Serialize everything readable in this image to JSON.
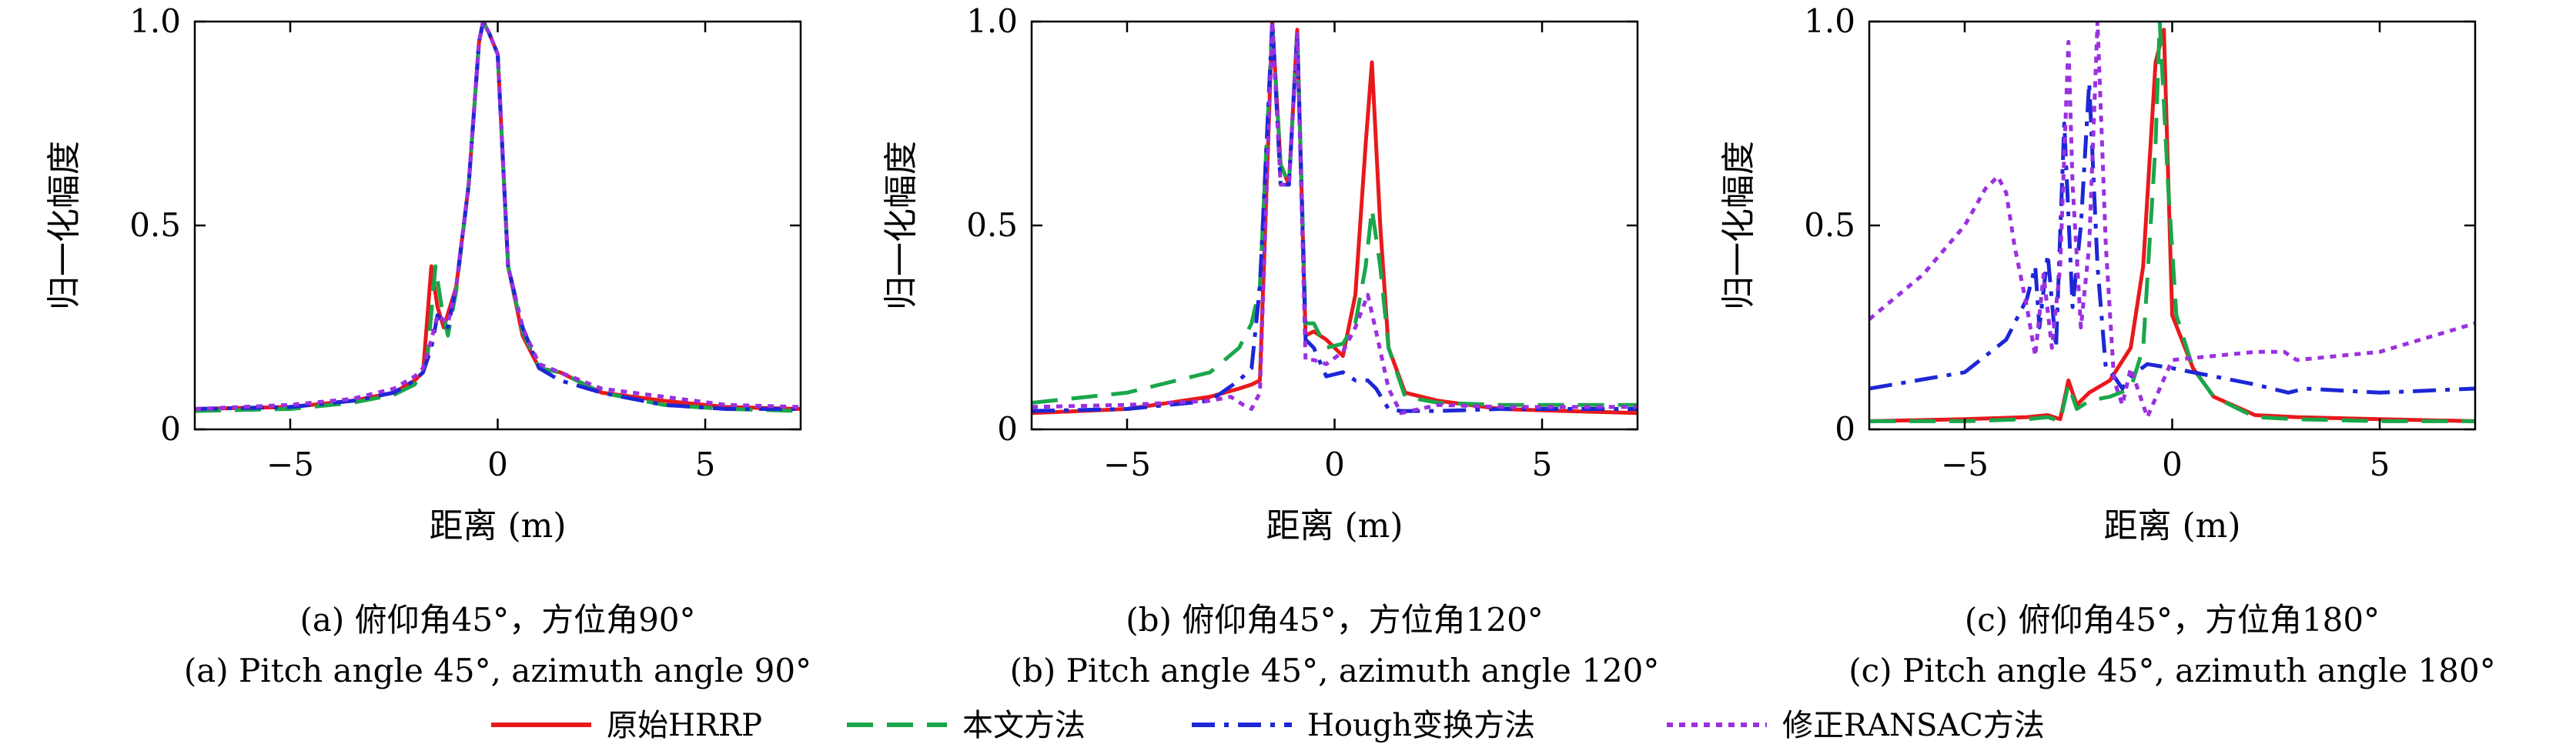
{
  "chart_data": [
    {
      "type": "line",
      "xlabel": "距离 (m)",
      "ylabel": "归一化幅度",
      "caption_cn": "(a) 俯仰角45°，方位角90°",
      "caption_en": "(a) Pitch angle 45°, azimuth angle 90°",
      "xlim": [
        -7.3,
        7.3
      ],
      "ylim": [
        0,
        1
      ],
      "xticks": [
        -5,
        0,
        5
      ],
      "xtick_labels": [
        "−5",
        "0",
        "5"
      ],
      "yticks": [
        0,
        0.5,
        1
      ],
      "ytick_labels": [
        "0",
        "0.5",
        "1.0"
      ],
      "series": [
        {
          "name": "原始HRRP",
          "x": [
            -7.3,
            -5,
            -3.5,
            -2.5,
            -2,
            -1.8,
            -1.6,
            -1.45,
            -1.3,
            -1,
            -0.7,
            -0.45,
            -0.35,
            -0.2,
            0,
            0.25,
            0.6,
            1,
            1.5,
            2.5,
            4,
            5.5,
            7.3
          ],
          "y": [
            0.05,
            0.055,
            0.07,
            0.09,
            0.12,
            0.14,
            0.4,
            0.3,
            0.25,
            0.35,
            0.6,
            0.95,
            1.0,
            0.97,
            0.92,
            0.4,
            0.23,
            0.15,
            0.14,
            0.09,
            0.07,
            0.055,
            0.05
          ]
        },
        {
          "name": "本文方法",
          "x": [
            -7.3,
            -5,
            -3.5,
            -2.5,
            -2,
            -1.7,
            -1.5,
            -1.35,
            -1.2,
            -1,
            -0.7,
            -0.45,
            -0.35,
            -0.2,
            0,
            0.25,
            0.6,
            1,
            1.5,
            2.5,
            4,
            5.5,
            7.3
          ],
          "y": [
            0.045,
            0.05,
            0.065,
            0.085,
            0.11,
            0.17,
            0.4,
            0.3,
            0.23,
            0.34,
            0.6,
            0.95,
            1.0,
            0.97,
            0.92,
            0.4,
            0.24,
            0.15,
            0.14,
            0.09,
            0.06,
            0.05,
            0.045
          ]
        },
        {
          "name": "Hough变换方法",
          "x": [
            -7.3,
            -5,
            -3.5,
            -2.5,
            -2,
            -1.8,
            -1.6,
            -1.45,
            -1.2,
            -1,
            -0.7,
            -0.45,
            -0.35,
            -0.2,
            0,
            0.25,
            0.6,
            1,
            1.5,
            2.5,
            4,
            5.5,
            7.3
          ],
          "y": [
            0.05,
            0.055,
            0.07,
            0.09,
            0.12,
            0.14,
            0.2,
            0.28,
            0.25,
            0.35,
            0.6,
            0.95,
            1.0,
            0.97,
            0.92,
            0.4,
            0.25,
            0.15,
            0.12,
            0.09,
            0.06,
            0.05,
            0.05
          ]
        },
        {
          "name": "修正RANSAC方法",
          "x": [
            -7.3,
            -5,
            -3.5,
            -2.5,
            -2,
            -1.8,
            -1.6,
            -1.45,
            -1.2,
            -1,
            -0.7,
            -0.45,
            -0.35,
            -0.2,
            0,
            0.25,
            0.6,
            1,
            1.5,
            2.5,
            4,
            5.5,
            7.3
          ],
          "y": [
            0.05,
            0.06,
            0.075,
            0.1,
            0.13,
            0.15,
            0.22,
            0.28,
            0.26,
            0.35,
            0.6,
            0.95,
            1.0,
            0.97,
            0.92,
            0.4,
            0.25,
            0.16,
            0.14,
            0.1,
            0.08,
            0.06,
            0.055
          ]
        }
      ]
    },
    {
      "type": "line",
      "xlabel": "距离 (m)",
      "ylabel": "归一化幅度",
      "caption_cn": "(b) 俯仰角45°，方位角120°",
      "caption_en": "(b) Pitch angle 45°, azimuth angle 120°",
      "xlim": [
        -7.3,
        7.3
      ],
      "ylim": [
        0,
        1
      ],
      "xticks": [
        -5,
        0,
        5
      ],
      "xtick_labels": [
        "−5",
        "0",
        "5"
      ],
      "yticks": [
        0,
        0.5,
        1
      ],
      "ytick_labels": [
        "0",
        "0.5",
        "1.0"
      ],
      "series": [
        {
          "name": "原始HRRP",
          "x": [
            -7.3,
            -5,
            -3,
            -2.3,
            -2,
            -1.8,
            -1.5,
            -1.3,
            -1.1,
            -0.9,
            -0.7,
            -0.5,
            -0.2,
            0.2,
            0.5,
            0.75,
            0.9,
            1.1,
            1.3,
            1.7,
            2.5,
            4,
            5.5,
            7.3
          ],
          "y": [
            0.04,
            0.05,
            0.08,
            0.1,
            0.11,
            0.12,
            1.0,
            0.65,
            0.6,
            0.98,
            0.23,
            0.24,
            0.22,
            0.18,
            0.33,
            0.7,
            0.9,
            0.5,
            0.2,
            0.09,
            0.07,
            0.05,
            0.045,
            0.04
          ]
        },
        {
          "name": "本文方法",
          "x": [
            -7.3,
            -5,
            -3,
            -2.3,
            -2,
            -1.8,
            -1.5,
            -1.3,
            -1.1,
            -0.9,
            -0.7,
            -0.5,
            -0.2,
            0.2,
            0.5,
            0.75,
            0.9,
            1.1,
            1.3,
            1.7,
            2.5,
            4,
            5.5,
            7.3
          ],
          "y": [
            0.065,
            0.09,
            0.14,
            0.2,
            0.26,
            0.35,
            1.0,
            0.65,
            0.6,
            0.98,
            0.26,
            0.26,
            0.2,
            0.21,
            0.26,
            0.4,
            0.54,
            0.4,
            0.2,
            0.08,
            0.065,
            0.06,
            0.06,
            0.06
          ]
        },
        {
          "name": "Hough变换方法",
          "x": [
            -7.3,
            -5,
            -3,
            -2.3,
            -2,
            -1.8,
            -1.5,
            -1.3,
            -1.1,
            -0.9,
            -0.7,
            -0.5,
            -0.2,
            0.2,
            0.5,
            0.8,
            1.0,
            1.3,
            1.6,
            2.5,
            4,
            5.5,
            7.3
          ],
          "y": [
            0.045,
            0.05,
            0.07,
            0.12,
            0.15,
            0.35,
            1.0,
            0.6,
            0.6,
            0.97,
            0.22,
            0.2,
            0.13,
            0.14,
            0.12,
            0.12,
            0.1,
            0.05,
            0.045,
            0.045,
            0.05,
            0.05,
            0.05
          ]
        },
        {
          "name": "修正RANSAC方法",
          "x": [
            -7.3,
            -5,
            -3,
            -2.5,
            -2.2,
            -2,
            -1.8,
            -1.5,
            -1.3,
            -1.1,
            -0.9,
            -0.7,
            -0.5,
            -0.2,
            0.2,
            0.5,
            0.8,
            1.0,
            1.3,
            1.6,
            2.5,
            4,
            5.5,
            7.3
          ],
          "y": [
            0.055,
            0.06,
            0.07,
            0.08,
            0.06,
            0.05,
            0.09,
            1.0,
            0.6,
            0.6,
            0.97,
            0.17,
            0.17,
            0.16,
            0.19,
            0.25,
            0.33,
            0.24,
            0.1,
            0.04,
            0.06,
            0.055,
            0.055,
            0.055
          ]
        }
      ]
    },
    {
      "type": "line",
      "xlabel": "距离 (m)",
      "ylabel": "归一化幅度",
      "caption_cn": "(c) 俯仰角45°，方位角180°",
      "caption_en": "(c) Pitch angle 45°, azimuth angle 180°",
      "xlim": [
        -7.3,
        7.3
      ],
      "ylim": [
        0,
        1
      ],
      "xticks": [
        -5,
        0,
        5
      ],
      "xtick_labels": [
        "−5",
        "0",
        "5"
      ],
      "yticks": [
        0,
        0.5,
        1
      ],
      "ytick_labels": [
        "0",
        "0.5",
        "1.0"
      ],
      "series": [
        {
          "name": "原始HRRP",
          "x": [
            -7.3,
            -5,
            -3.5,
            -3,
            -2.7,
            -2.5,
            -2.3,
            -2,
            -1.5,
            -1,
            -0.7,
            -0.4,
            -0.2,
            0,
            0.5,
            1,
            2,
            3,
            5,
            7.3
          ],
          "y": [
            0.02,
            0.025,
            0.03,
            0.035,
            0.025,
            0.12,
            0.06,
            0.09,
            0.12,
            0.2,
            0.4,
            0.9,
            0.98,
            0.28,
            0.15,
            0.08,
            0.035,
            0.03,
            0.025,
            0.02
          ]
        },
        {
          "name": "本文方法",
          "x": [
            -7.3,
            -5,
            -3.5,
            -3,
            -2.7,
            -2.5,
            -2.3,
            -2,
            -1.5,
            -1,
            -0.7,
            -0.4,
            -0.3,
            -0.1,
            0.1,
            0.5,
            1,
            2,
            3,
            5,
            7.3
          ],
          "y": [
            0.02,
            0.02,
            0.025,
            0.03,
            0.02,
            0.11,
            0.05,
            0.07,
            0.08,
            0.1,
            0.2,
            0.7,
            1.0,
            0.6,
            0.28,
            0.15,
            0.08,
            0.03,
            0.025,
            0.02,
            0.02
          ]
        },
        {
          "name": "Hough变换方法",
          "x": [
            -7.3,
            -5,
            -4,
            -3.5,
            -3.3,
            -3.2,
            -3.0,
            -2.8,
            -2.6,
            -2.4,
            -2.2,
            -2.0,
            -1.8,
            -1.6,
            -1.4,
            -1.2,
            -1.0,
            -0.6,
            0,
            1,
            2,
            2.8,
            3.2,
            5,
            7.3
          ],
          "y": [
            0.1,
            0.14,
            0.22,
            0.32,
            0.4,
            0.25,
            0.43,
            0.2,
            0.75,
            0.3,
            0.5,
            0.85,
            0.4,
            0.15,
            0.13,
            0.1,
            0.13,
            0.16,
            0.15,
            0.13,
            0.11,
            0.09,
            0.1,
            0.09,
            0.1
          ]
        },
        {
          "name": "修正RANSAC方法",
          "x": [
            -7.3,
            -6,
            -5,
            -4.5,
            -4.2,
            -4.0,
            -3.8,
            -3.5,
            -3.3,
            -3.1,
            -2.9,
            -2.7,
            -2.5,
            -2.4,
            -2.2,
            -2.0,
            -1.8,
            -1.6,
            -1.4,
            -1.2,
            -1.0,
            -0.6,
            -0.3,
            0,
            1,
            2,
            2.7,
            3.0,
            5,
            7.3
          ],
          "y": [
            0.27,
            0.38,
            0.5,
            0.59,
            0.62,
            0.58,
            0.45,
            0.3,
            0.18,
            0.38,
            0.2,
            0.4,
            0.95,
            0.6,
            0.25,
            0.45,
            1.0,
            0.45,
            0.12,
            0.06,
            0.15,
            0.03,
            0.1,
            0.17,
            0.18,
            0.19,
            0.19,
            0.17,
            0.19,
            0.26
          ]
        }
      ]
    }
  ],
  "legend": [
    {
      "label": "原始HRRP",
      "color": "#e8191c",
      "style": "solid"
    },
    {
      "label": "本文方法",
      "color": "#1aa64b",
      "style": "dashed"
    },
    {
      "label": "Hough变换方法",
      "color": "#1d27d6",
      "style": "dashdot"
    },
    {
      "label": "修正RANSAC方法",
      "color": "#9b30e0",
      "style": "dotted"
    }
  ]
}
